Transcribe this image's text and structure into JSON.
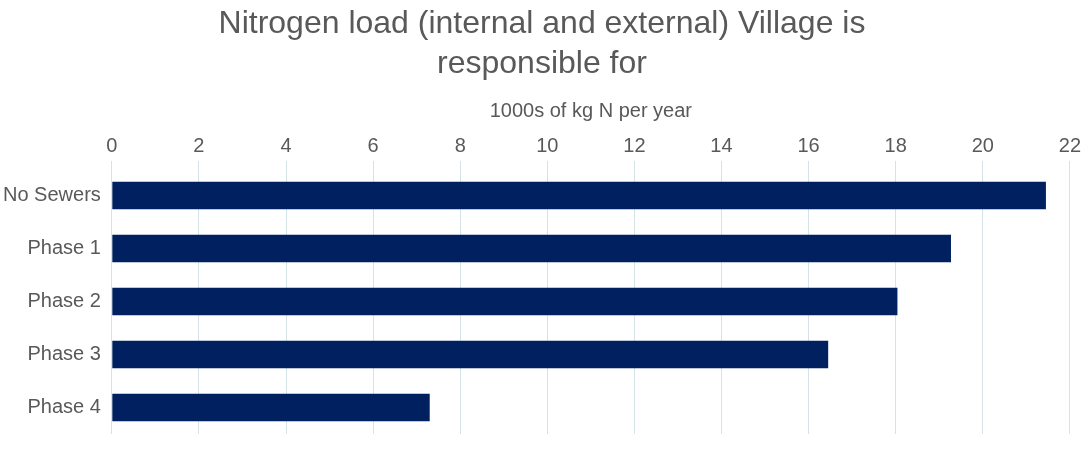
{
  "chart_data": {
    "type": "bar",
    "orientation": "horizontal",
    "title": "Nitrogen load (internal and external) Village is responsible for",
    "xlabel": "1000s of kg N per year",
    "categories": [
      "No Sewers",
      "Phase 1",
      "Phase 2",
      "Phase 3",
      "Phase 4"
    ],
    "values": [
      21.45,
      19.27,
      18.04,
      16.45,
      7.3
    ],
    "color": "#002060",
    "xlim": [
      0,
      22
    ],
    "xticks": [
      0,
      2,
      4,
      6,
      8,
      10,
      12,
      14,
      16,
      18,
      20,
      22
    ],
    "grid": "x",
    "legend": false
  }
}
